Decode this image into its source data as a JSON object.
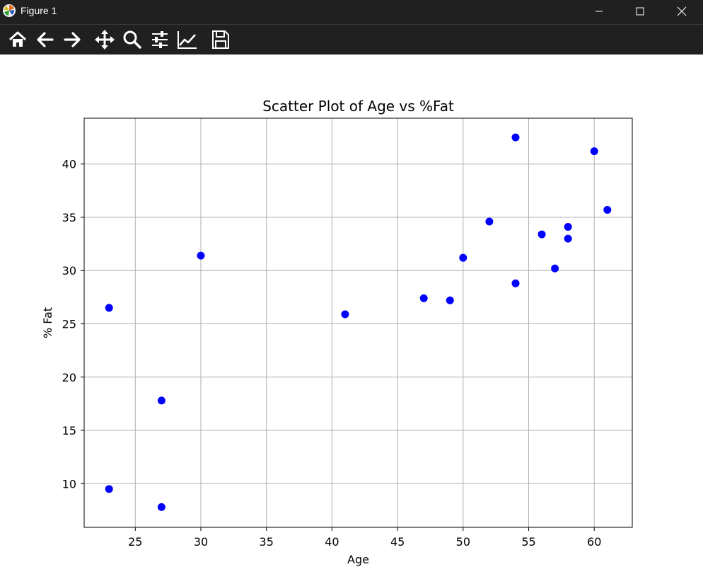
{
  "window": {
    "title": "Figure 1",
    "controls": {
      "minimize": "minimize-icon",
      "maximize": "maximize-icon",
      "close": "close-icon"
    }
  },
  "toolbar": {
    "tools": [
      {
        "name": "home",
        "icon": "home-icon"
      },
      {
        "name": "back",
        "icon": "back-arrow-icon"
      },
      {
        "name": "forward",
        "icon": "forward-arrow-icon"
      },
      {
        "name": "pan",
        "icon": "move-icon"
      },
      {
        "name": "zoom",
        "icon": "zoom-icon"
      },
      {
        "name": "configure-subplots",
        "icon": "sliders-icon"
      },
      {
        "name": "edit-axis",
        "icon": "line-chart-icon"
      },
      {
        "name": "save",
        "icon": "save-icon"
      }
    ]
  },
  "chart_data": {
    "type": "scatter",
    "title": "Scatter Plot of Age vs %Fat",
    "xlabel": "Age",
    "ylabel": "% Fat",
    "xlim": [
      21.1,
      62.9
    ],
    "ylim": [
      5.9,
      44.3
    ],
    "xticks": [
      25,
      30,
      35,
      40,
      45,
      50,
      55,
      60
    ],
    "yticks": [
      10,
      15,
      20,
      25,
      30,
      35,
      40
    ],
    "grid": true,
    "marker_color": "#0000ff",
    "points": [
      {
        "x": 23,
        "y": 9.5
      },
      {
        "x": 23,
        "y": 26.5
      },
      {
        "x": 27,
        "y": 7.8
      },
      {
        "x": 27,
        "y": 17.8
      },
      {
        "x": 30,
        "y": 31.4
      },
      {
        "x": 41,
        "y": 25.9
      },
      {
        "x": 47,
        "y": 27.4
      },
      {
        "x": 49,
        "y": 27.2
      },
      {
        "x": 50,
        "y": 31.2
      },
      {
        "x": 52,
        "y": 34.6
      },
      {
        "x": 54,
        "y": 42.5
      },
      {
        "x": 54,
        "y": 28.8
      },
      {
        "x": 56,
        "y": 33.4
      },
      {
        "x": 57,
        "y": 30.2
      },
      {
        "x": 58,
        "y": 33.0
      },
      {
        "x": 58,
        "y": 34.1
      },
      {
        "x": 60,
        "y": 41.2
      },
      {
        "x": 61,
        "y": 35.7
      }
    ]
  }
}
